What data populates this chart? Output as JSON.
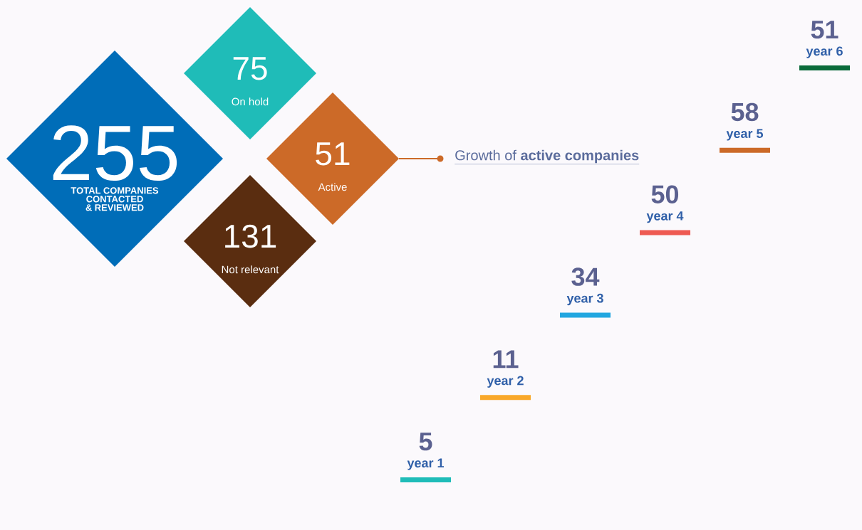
{
  "chart_data": [
    {
      "type": "other",
      "categories": [
        "TOTAL COMPANIES CONTACTED & REVIEWED",
        "On hold",
        "Active",
        "Not relevant"
      ],
      "values": [
        255,
        75,
        51,
        131
      ],
      "colors": [
        "#006db8",
        "#1fbcb8",
        "#cc6a28",
        "#5a2d10"
      ],
      "data_labels": true
    },
    {
      "type": "other",
      "title": "Growth of **active companies**",
      "categories": [
        "year 1",
        "year 2",
        "year 3",
        "year 4",
        "year 5",
        "year 6"
      ],
      "values": [
        5,
        11,
        34,
        50,
        58,
        51
      ],
      "colors": [
        "#1fbcb8",
        "#f9a82a",
        "#22a6e0",
        "#ee5a52",
        "#cc6a28",
        "#0a6a3a"
      ],
      "data_labels": true
    }
  ]
}
